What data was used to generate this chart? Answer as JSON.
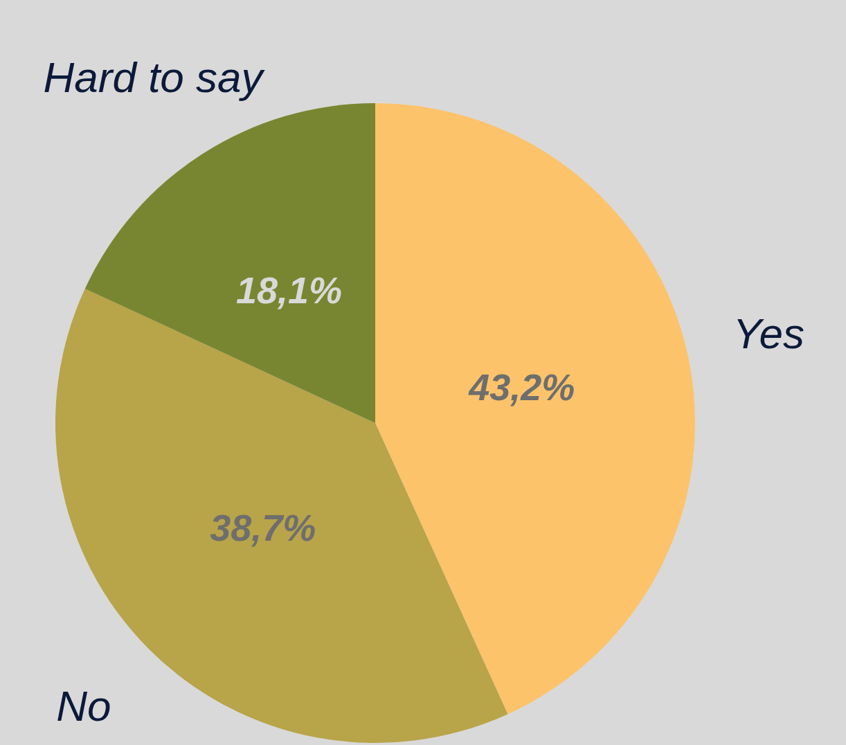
{
  "chart_data": {
    "type": "pie",
    "categories": [
      "Yes",
      "No",
      "Hard to say"
    ],
    "values": [
      43.2,
      38.7,
      18.1
    ],
    "value_labels": [
      "43,2%",
      "38,7%",
      "18,1%"
    ],
    "colors": [
      "#fcc36b",
      "#b8a449",
      "#788631"
    ],
    "legend": false
  }
}
